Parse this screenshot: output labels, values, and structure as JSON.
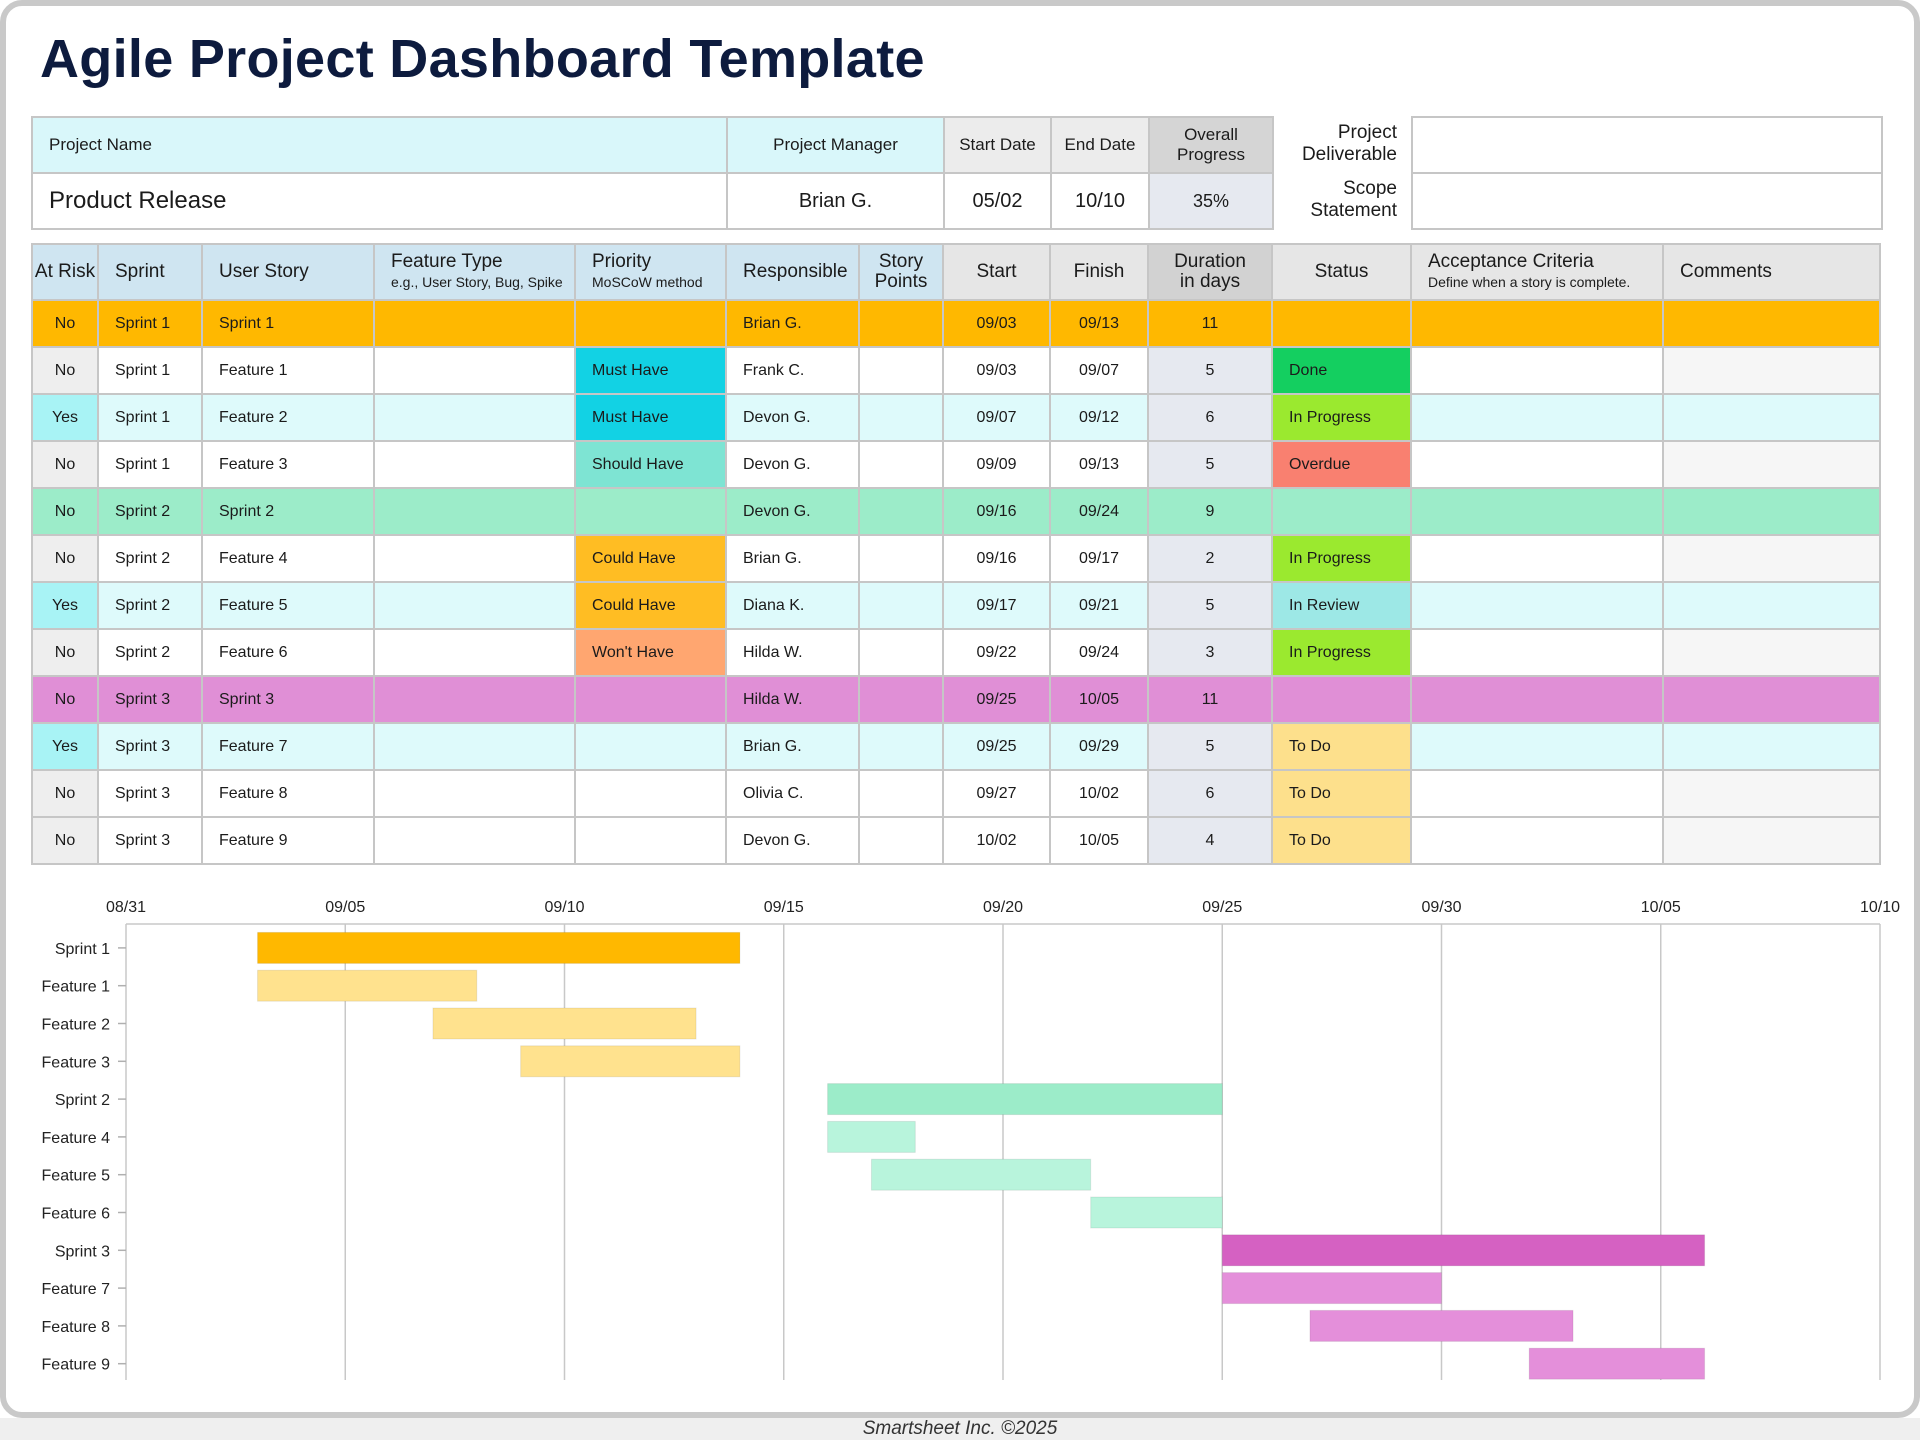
{
  "title": "Agile Project Dashboard Template",
  "info": {
    "project_name_label": "Project Name",
    "project_manager_label": "Project Manager",
    "start_date_label": "Start Date",
    "end_date_label": "End Date",
    "overall_progress_label": "Overall Progress",
    "project_name": "Product Release",
    "project_manager": "Brian G.",
    "start_date": "05/02",
    "end_date": "10/10",
    "overall_progress": "35%",
    "project_deliverable_label": "Project Deliverable",
    "scope_statement_label": "Scope Statement",
    "project_deliverable": "",
    "scope_statement": ""
  },
  "table": {
    "headers": {
      "at_risk": "At Risk",
      "sprint": "Sprint",
      "user_story": "User Story",
      "feature_type": "Feature Type",
      "feature_type_sub": "e.g., User Story, Bug, Spike",
      "priority": "Priority",
      "priority_sub": "MoSCoW method",
      "responsible": "Responsible",
      "story_points": "Story Points",
      "start": "Start",
      "finish": "Finish",
      "duration": "Duration in days",
      "status": "Status",
      "acceptance": "Acceptance Criteria",
      "acceptance_sub": "Define when a story is complete.",
      "comments": "Comments"
    },
    "rows": [
      {
        "kind": "sprint",
        "group": 1,
        "at_risk": "No",
        "sprint": "Sprint 1",
        "story": "Sprint 1",
        "type": "",
        "priority": "",
        "responsible": "Brian G.",
        "points": "",
        "start": "09/03",
        "finish": "09/13",
        "duration": "11",
        "status": "",
        "acceptance": "",
        "comments": ""
      },
      {
        "kind": "feature",
        "group": 1,
        "at_risk": "No",
        "sprint": "Sprint 1",
        "story": "Feature 1",
        "type": "",
        "priority": "Must Have",
        "responsible": "Frank C.",
        "points": "",
        "start": "09/03",
        "finish": "09/07",
        "duration": "5",
        "status": "Done",
        "acceptance": "",
        "comments": ""
      },
      {
        "kind": "feature",
        "group": 1,
        "at_risk": "Yes",
        "sprint": "Sprint 1",
        "story": "Feature 2",
        "type": "",
        "priority": "Must Have",
        "responsible": "Devon G.",
        "points": "",
        "start": "09/07",
        "finish": "09/12",
        "duration": "6",
        "status": "In Progress",
        "acceptance": "",
        "comments": ""
      },
      {
        "kind": "feature",
        "group": 1,
        "at_risk": "No",
        "sprint": "Sprint 1",
        "story": "Feature 3",
        "type": "",
        "priority": "Should Have",
        "responsible": "Devon G.",
        "points": "",
        "start": "09/09",
        "finish": "09/13",
        "duration": "5",
        "status": "Overdue",
        "acceptance": "",
        "comments": ""
      },
      {
        "kind": "sprint",
        "group": 2,
        "at_risk": "No",
        "sprint": "Sprint 2",
        "story": "Sprint 2",
        "type": "",
        "priority": "",
        "responsible": "Devon G.",
        "points": "",
        "start": "09/16",
        "finish": "09/24",
        "duration": "9",
        "status": "",
        "acceptance": "",
        "comments": ""
      },
      {
        "kind": "feature",
        "group": 2,
        "at_risk": "No",
        "sprint": "Sprint 2",
        "story": "Feature 4",
        "type": "",
        "priority": "Could Have",
        "responsible": "Brian G.",
        "points": "",
        "start": "09/16",
        "finish": "09/17",
        "duration": "2",
        "status": "In Progress",
        "acceptance": "",
        "comments": ""
      },
      {
        "kind": "feature",
        "group": 2,
        "at_risk": "Yes",
        "sprint": "Sprint 2",
        "story": "Feature 5",
        "type": "",
        "priority": "Could Have",
        "responsible": "Diana K.",
        "points": "",
        "start": "09/17",
        "finish": "09/21",
        "duration": "5",
        "status": "In Review",
        "acceptance": "",
        "comments": ""
      },
      {
        "kind": "feature",
        "group": 2,
        "at_risk": "No",
        "sprint": "Sprint 2",
        "story": "Feature 6",
        "type": "",
        "priority": "Won't Have",
        "responsible": "Hilda W.",
        "points": "",
        "start": "09/22",
        "finish": "09/24",
        "duration": "3",
        "status": "In Progress",
        "acceptance": "",
        "comments": ""
      },
      {
        "kind": "sprint",
        "group": 3,
        "at_risk": "No",
        "sprint": "Sprint 3",
        "story": "Sprint 3",
        "type": "",
        "priority": "",
        "responsible": "Hilda W.",
        "points": "",
        "start": "09/25",
        "finish": "10/05",
        "duration": "11",
        "status": "",
        "acceptance": "",
        "comments": ""
      },
      {
        "kind": "feature",
        "group": 3,
        "at_risk": "Yes",
        "sprint": "Sprint 3",
        "story": "Feature 7",
        "type": "",
        "priority": "",
        "responsible": "Brian G.",
        "points": "",
        "start": "09/25",
        "finish": "09/29",
        "duration": "5",
        "status": "To Do",
        "acceptance": "",
        "comments": ""
      },
      {
        "kind": "feature",
        "group": 3,
        "at_risk": "No",
        "sprint": "Sprint 3",
        "story": "Feature 8",
        "type": "",
        "priority": "",
        "responsible": "Olivia C.",
        "points": "",
        "start": "09/27",
        "finish": "10/02",
        "duration": "6",
        "status": "To Do",
        "acceptance": "",
        "comments": ""
      },
      {
        "kind": "feature",
        "group": 3,
        "at_risk": "No",
        "sprint": "Sprint 3",
        "story": "Feature 9",
        "type": "",
        "priority": "",
        "responsible": "Devon G.",
        "points": "",
        "start": "10/02",
        "finish": "10/05",
        "duration": "4",
        "status": "To Do",
        "acceptance": "",
        "comments": ""
      }
    ]
  },
  "colors": {
    "sprint_1": "#ffb800",
    "sprint_2": "#9cecc9",
    "sprint_3": "#e08fd6",
    "at_risk_yes_row": "#defafb",
    "at_risk_yes_cell": "#a8f3f5",
    "duration_cell": "#e6e9f0",
    "priority": {
      "Must Have": "#12d2e4",
      "Should Have": "#7ee4d3",
      "Could Have": "#ffbd23",
      "Won't Have": "#ffa670"
    },
    "status": {
      "Done": "#14cf60",
      "In Progress": "#9be92f",
      "Overdue": "#f98070",
      "In Review": "#9de8e6",
      "To Do": "#fde08c"
    },
    "bars": {
      "sprint_1": "#ffb800",
      "feature_1": "#ffe28e",
      "sprint_2": "#9cecc9",
      "feature_2": "#b8f4dc",
      "sprint_3": "#d561c2",
      "feature_3": "#e48fda"
    }
  },
  "chart_data": {
    "type": "gantt",
    "x_ticks": [
      "08/31",
      "09/05",
      "09/10",
      "09/15",
      "09/20",
      "09/25",
      "09/30",
      "10/05",
      "10/10"
    ],
    "xlim": [
      "08/31",
      "10/10"
    ],
    "grid": true,
    "tasks": [
      {
        "label": "Sprint 1",
        "start": "09/03",
        "end": "09/13",
        "kind": "sprint",
        "group": 1
      },
      {
        "label": "Feature 1",
        "start": "09/03",
        "end": "09/07",
        "kind": "feature",
        "group": 1
      },
      {
        "label": "Feature 2",
        "start": "09/07",
        "end": "09/12",
        "kind": "feature",
        "group": 1
      },
      {
        "label": "Feature 3",
        "start": "09/09",
        "end": "09/13",
        "kind": "feature",
        "group": 1
      },
      {
        "label": "Sprint 2",
        "start": "09/16",
        "end": "09/24",
        "kind": "sprint",
        "group": 2
      },
      {
        "label": "Feature 4",
        "start": "09/16",
        "end": "09/17",
        "kind": "feature",
        "group": 2
      },
      {
        "label": "Feature 5",
        "start": "09/17",
        "end": "09/21",
        "kind": "feature",
        "group": 2
      },
      {
        "label": "Feature 6",
        "start": "09/22",
        "end": "09/24",
        "kind": "feature",
        "group": 2
      },
      {
        "label": "Sprint 3",
        "start": "09/25",
        "end": "10/05",
        "kind": "sprint",
        "group": 3
      },
      {
        "label": "Feature 7",
        "start": "09/25",
        "end": "09/29",
        "kind": "feature",
        "group": 3
      },
      {
        "label": "Feature 8",
        "start": "09/27",
        "end": "10/02",
        "kind": "feature",
        "group": 3
      },
      {
        "label": "Feature 9",
        "start": "10/02",
        "end": "10/05",
        "kind": "feature",
        "group": 3
      }
    ]
  },
  "footer": "Smartsheet Inc. ©2025"
}
